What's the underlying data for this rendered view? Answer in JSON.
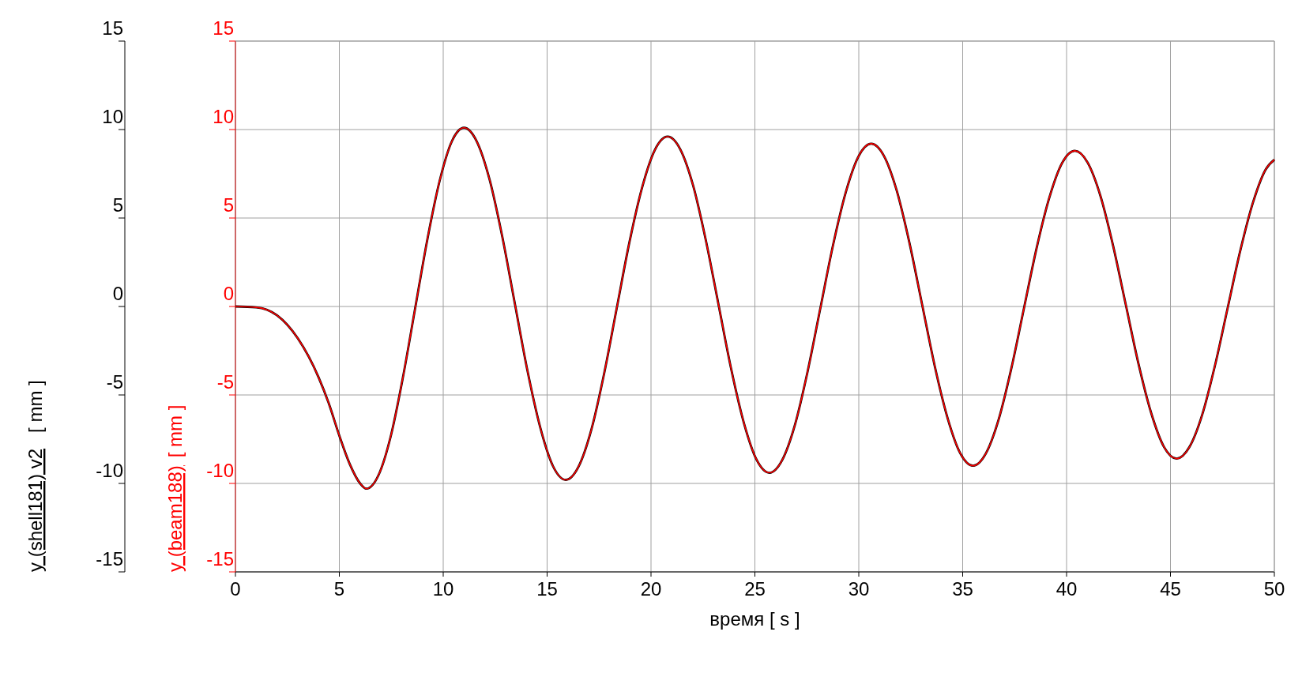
{
  "chart_data": {
    "type": "line",
    "xlabel": "время   [ s ]",
    "ylabel": "[ mm ]",
    "y2label": "[ mm ]",
    "x": [
      0,
      1,
      2,
      3,
      4,
      4.5,
      5,
      5.5,
      6,
      6.3,
      6.89,
      7.48,
      8.06,
      8.65,
      9.24,
      9.83,
      10.41,
      11.0,
      11.61,
      12.23,
      12.84,
      13.45,
      14.06,
      14.68,
      15.29,
      15.9,
      16.51,
      17.13,
      17.74,
      18.35,
      18.96,
      19.58,
      20.19,
      20.8,
      21.41,
      22.03,
      22.64,
      23.25,
      23.86,
      24.48,
      25.09,
      25.7,
      26.31,
      26.93,
      27.54,
      28.15,
      28.76,
      29.38,
      29.99,
      30.6,
      31.21,
      31.83,
      32.44,
      33.05,
      33.66,
      34.28,
      34.89,
      35.5,
      36.11,
      36.73,
      37.34,
      37.95,
      38.56,
      39.18,
      39.79,
      40.4,
      41.01,
      41.63,
      42.24,
      42.85,
      43.46,
      44.08,
      44.69,
      45.3,
      45.91,
      46.53,
      47.14,
      47.75,
      48.36,
      48.98,
      49.59,
      50
    ],
    "series": [
      {
        "name": "y (shell181) v2",
        "color": "#000000",
        "axis": "y",
        "values": [
          0,
          -0.05,
          -0.5,
          -1.8,
          -4.0,
          -5.5,
          -7.3,
          -8.9,
          -10.0,
          -10.3,
          -9.52,
          -7.31,
          -4.01,
          -0.1,
          3.81,
          7.11,
          9.32,
          10.1,
          9.34,
          7.18,
          3.96,
          0.15,
          -3.66,
          -6.88,
          -9.04,
          -9.8,
          -9.06,
          -6.96,
          -3.82,
          -0.1,
          3.62,
          6.76,
          8.86,
          9.6,
          8.88,
          6.82,
          3.74,
          0.1,
          -3.54,
          -6.62,
          -8.68,
          -9.4,
          -8.69,
          -6.68,
          -3.66,
          -0.1,
          3.46,
          6.48,
          8.49,
          9.2,
          8.51,
          6.53,
          3.59,
          0.1,
          -3.39,
          -6.33,
          -8.31,
          -9.0,
          -8.32,
          -6.39,
          -3.51,
          -0.1,
          3.31,
          6.19,
          8.12,
          8.8,
          8.14,
          6.25,
          3.43,
          0.1,
          -3.23,
          -6.05,
          -7.94,
          -8.6,
          -7.95,
          -6.11,
          -3.35,
          -0.1,
          3.15,
          5.91,
          7.76,
          8.3
        ]
      },
      {
        "name": "y (beam188)",
        "color": "#ff0000",
        "axis": "y2",
        "values": [
          0,
          -0.05,
          -0.5,
          -1.8,
          -4.0,
          -5.5,
          -7.3,
          -8.9,
          -10.0,
          -10.3,
          -9.52,
          -7.31,
          -4.01,
          -0.1,
          3.81,
          7.11,
          9.32,
          10.1,
          9.34,
          7.18,
          3.96,
          0.15,
          -3.66,
          -6.88,
          -9.04,
          -9.8,
          -9.06,
          -6.96,
          -3.82,
          -0.1,
          3.62,
          6.76,
          8.86,
          9.6,
          8.88,
          6.82,
          3.74,
          0.1,
          -3.54,
          -6.62,
          -8.68,
          -9.4,
          -8.69,
          -6.68,
          -3.66,
          -0.1,
          3.46,
          6.48,
          8.49,
          9.2,
          8.51,
          6.53,
          3.59,
          0.1,
          -3.39,
          -6.33,
          -8.31,
          -9.0,
          -8.32,
          -6.39,
          -3.51,
          -0.1,
          3.31,
          6.19,
          8.12,
          8.8,
          8.14,
          6.25,
          3.43,
          0.1,
          -3.23,
          -6.05,
          -7.94,
          -8.6,
          -7.95,
          -6.11,
          -3.35,
          -0.1,
          3.15,
          5.91,
          7.76,
          8.3
        ]
      }
    ],
    "xlim": [
      0,
      50
    ],
    "xticks": [
      0,
      5,
      10,
      15,
      20,
      25,
      30,
      35,
      40,
      45,
      50
    ],
    "ylim": [
      -15,
      15
    ],
    "yticks": [
      -15,
      -10,
      -5,
      0,
      5,
      10,
      15
    ],
    "y2lim": [
      -15,
      15
    ],
    "y2ticks": [
      -15,
      -10,
      -5,
      0,
      5,
      10,
      15
    ],
    "grid": true,
    "marker": "none",
    "line_style": "solid"
  }
}
